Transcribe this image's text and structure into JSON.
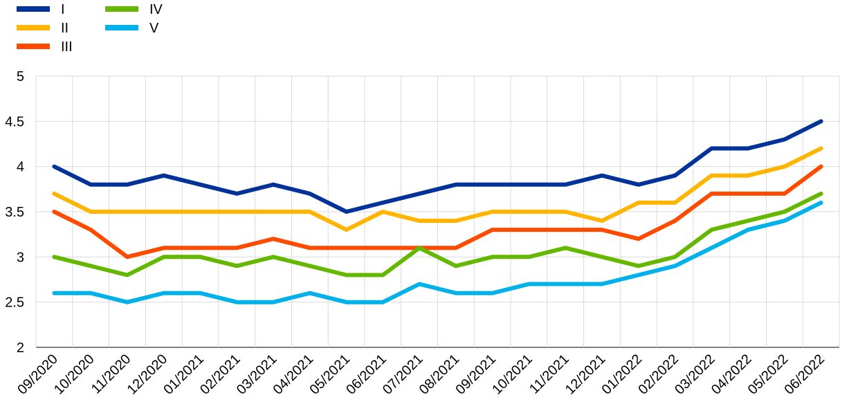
{
  "chart_data": {
    "type": "line",
    "title": "",
    "xlabel": "",
    "ylabel": "",
    "ylim": [
      2,
      5
    ],
    "yticks": [
      "2",
      "2.5",
      "3",
      "3.5",
      "4",
      "4.5",
      "5"
    ],
    "grid": true,
    "legend_position": "top-left",
    "categories": [
      "09/2020",
      "10/2020",
      "11/2020",
      "12/2020",
      "01/2021",
      "02/2021",
      "03/2021",
      "04/2021",
      "05/2021",
      "06/2021",
      "07/2021",
      "08/2021",
      "09/2021",
      "10/2021",
      "11/2021",
      "12/2021",
      "01/2022",
      "02/2022",
      "03/2022",
      "04/2022",
      "05/2022",
      "06/2022"
    ],
    "series": [
      {
        "name": "I",
        "color": "#003299",
        "values": [
          4.0,
          3.8,
          3.8,
          3.9,
          3.8,
          3.7,
          3.8,
          3.7,
          3.5,
          3.6,
          3.7,
          3.8,
          3.8,
          3.8,
          3.8,
          3.9,
          3.8,
          3.9,
          4.2,
          4.2,
          4.3,
          4.5
        ]
      },
      {
        "name": "II",
        "color": "#FFB400",
        "values": [
          3.7,
          3.5,
          3.5,
          3.5,
          3.5,
          3.5,
          3.5,
          3.5,
          3.3,
          3.5,
          3.4,
          3.4,
          3.5,
          3.5,
          3.5,
          3.4,
          3.6,
          3.6,
          3.9,
          3.9,
          4.0,
          4.2
        ]
      },
      {
        "name": "III",
        "color": "#FF4B00",
        "values": [
          3.5,
          3.3,
          3.0,
          3.1,
          3.1,
          3.1,
          3.2,
          3.1,
          3.1,
          3.1,
          3.1,
          3.1,
          3.3,
          3.3,
          3.3,
          3.3,
          3.2,
          3.4,
          3.7,
          3.7,
          3.7,
          4.0
        ]
      },
      {
        "name": "IV",
        "color": "#65B800",
        "values": [
          3.0,
          2.9,
          2.8,
          3.0,
          3.0,
          2.9,
          3.0,
          2.9,
          2.8,
          2.8,
          3.1,
          2.9,
          3.0,
          3.0,
          3.1,
          3.0,
          2.9,
          3.0,
          3.3,
          3.4,
          3.5,
          3.7
        ]
      },
      {
        "name": "V",
        "color": "#00B1EA",
        "values": [
          2.6,
          2.6,
          2.5,
          2.6,
          2.6,
          2.5,
          2.5,
          2.6,
          2.5,
          2.5,
          2.7,
          2.6,
          2.6,
          2.7,
          2.7,
          2.7,
          2.8,
          2.9,
          3.1,
          3.3,
          3.4,
          3.6
        ]
      }
    ]
  }
}
